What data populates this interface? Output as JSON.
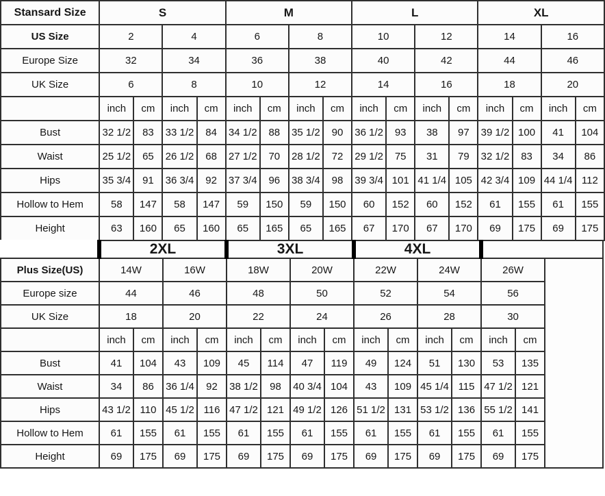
{
  "chart_data": [
    {
      "type": "table",
      "title": "Stansard Size",
      "corner_label": "Stansard Size",
      "group_headers": [
        "S",
        "M",
        "L",
        "XL"
      ],
      "size_rows": [
        {
          "label": "US Size",
          "values": [
            "2",
            "4",
            "6",
            "8",
            "10",
            "12",
            "14",
            "16"
          ]
        },
        {
          "label": "Europe Size",
          "values": [
            "32",
            "34",
            "36",
            "38",
            "40",
            "42",
            "44",
            "46"
          ]
        },
        {
          "label": "UK Size",
          "values": [
            "6",
            "8",
            "10",
            "12",
            "14",
            "16",
            "18",
            "20"
          ]
        }
      ],
      "unit_pair": [
        "inch",
        "cm"
      ],
      "pairs": 8,
      "measurement_rows": [
        {
          "label": "Bust",
          "values": [
            "32 1/2",
            "83",
            "33 1/2",
            "84",
            "34 1/2",
            "88",
            "35 1/2",
            "90",
            "36 1/2",
            "93",
            "38",
            "97",
            "39 1/2",
            "100",
            "41",
            "104"
          ]
        },
        {
          "label": "Waist",
          "values": [
            "25 1/2",
            "65",
            "26 1/2",
            "68",
            "27 1/2",
            "70",
            "28 1/2",
            "72",
            "29 1/2",
            "75",
            "31",
            "79",
            "32 1/2",
            "83",
            "34",
            "86"
          ]
        },
        {
          "label": "Hips",
          "values": [
            "35 3/4",
            "91",
            "36 3/4",
            "92",
            "37 3/4",
            "96",
            "38 3/4",
            "98",
            "39 3/4",
            "101",
            "41 1/4",
            "105",
            "42 3/4",
            "109",
            "44 1/4",
            "112"
          ]
        },
        {
          "label": "Hollow to Hem",
          "values": [
            "58",
            "147",
            "58",
            "147",
            "59",
            "150",
            "59",
            "150",
            "60",
            "152",
            "60",
            "152",
            "61",
            "155",
            "61",
            "155"
          ]
        },
        {
          "label": "Height",
          "values": [
            "63",
            "160",
            "65",
            "160",
            "65",
            "165",
            "65",
            "165",
            "67",
            "170",
            "67",
            "170",
            "69",
            "175",
            "69",
            "175"
          ]
        }
      ]
    },
    {
      "type": "table",
      "title": "Plus Size",
      "banner_labels": [
        "2XL",
        "3XL",
        "4XL"
      ],
      "size_rows": [
        {
          "label": "Plus Size(US)",
          "values": [
            "14W",
            "16W",
            "18W",
            "20W",
            "22W",
            "24W",
            "26W"
          ]
        },
        {
          "label": "Europe size",
          "values": [
            "44",
            "46",
            "48",
            "50",
            "52",
            "54",
            "56"
          ]
        },
        {
          "label": "UK Size",
          "values": [
            "18",
            "20",
            "22",
            "24",
            "26",
            "28",
            "30"
          ]
        }
      ],
      "unit_pair": [
        "inch",
        "cm"
      ],
      "pairs": 7,
      "measurement_rows": [
        {
          "label": "Bust",
          "values": [
            "41",
            "104",
            "43",
            "109",
            "45",
            "114",
            "47",
            "119",
            "49",
            "124",
            "51",
            "130",
            "53",
            "135"
          ]
        },
        {
          "label": "Waist",
          "values": [
            "34",
            "86",
            "36 1/4",
            "92",
            "38 1/2",
            "98",
            "40 3/4",
            "104",
            "43",
            "109",
            "45 1/4",
            "115",
            "47 1/2",
            "121"
          ]
        },
        {
          "label": "Hips",
          "values": [
            "43 1/2",
            "110",
            "45 1/2",
            "116",
            "47 1/2",
            "121",
            "49 1/2",
            "126",
            "51 1/2",
            "131",
            "53 1/2",
            "136",
            "55 1/2",
            "141"
          ]
        },
        {
          "label": "Hollow to Hem",
          "values": [
            "61",
            "155",
            "61",
            "155",
            "61",
            "155",
            "61",
            "155",
            "61",
            "155",
            "61",
            "155",
            "61",
            "155"
          ]
        },
        {
          "label": "Height",
          "values": [
            "69",
            "175",
            "69",
            "175",
            "69",
            "175",
            "69",
            "175",
            "69",
            "175",
            "69",
            "175",
            "69",
            "175"
          ]
        }
      ]
    }
  ],
  "colors": {
    "grid_line": "#2f2f2f",
    "thick_bar": "#000000",
    "cell_bg": "#fcfcfc",
    "text": "#161616"
  }
}
